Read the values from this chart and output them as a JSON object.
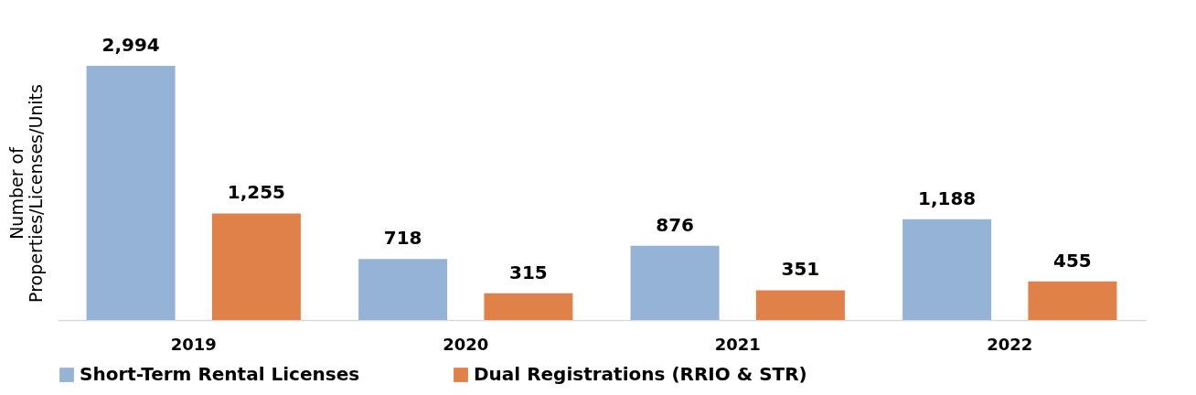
{
  "chart_data": {
    "type": "bar",
    "ylabel": "Number of Properties/Licenses/Units",
    "categories": [
      "2019",
      "2020",
      "2021",
      "2022"
    ],
    "series": [
      {
        "name": "Short-Term Rental Licenses",
        "color": "#95b3d7",
        "values": [
          2994,
          718,
          876,
          1188
        ],
        "value_labels": [
          "2,994",
          "718",
          "876",
          "1,188"
        ]
      },
      {
        "name": "Dual Registrations (RRIO & STR)",
        "color": "#e0814a",
        "values": [
          1255,
          315,
          351,
          455
        ],
        "value_labels": [
          "1,255",
          "315",
          "351",
          "455"
        ]
      }
    ],
    "legend": "bottom",
    "grid": false
  }
}
